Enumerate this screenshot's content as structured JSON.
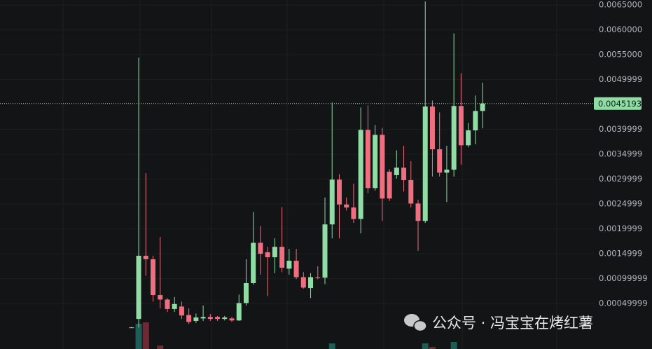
{
  "chart_data": {
    "type": "candlestick",
    "ylim": [
      -0.000414,
      0.0066
    ],
    "yticks": [
      {
        "value": 0.0065,
        "label": "0.0065000"
      },
      {
        "value": 0.006,
        "label": "0.0060000"
      },
      {
        "value": 0.0055,
        "label": "0.0055000"
      },
      0.0049999,
      0.0039999,
      0.0034999,
      0.0029999,
      0.0024999,
      0.0019999,
      0.0014999,
      0.00099999,
      0.00049999
    ],
    "grid": true,
    "up_color": "#8fdca5",
    "down_color": "#ef6f80",
    "open": [
      2e-05,
      0.00019,
      0.00146,
      0.00139,
      0.00067,
      0.00058,
      0.00039,
      0.00044,
      0.00027,
      0.00015,
      0.0002,
      0.00023,
      0.00023,
      0.00019,
      0.0002,
      0.00016,
      0.00051,
      0.00091,
      0.00172,
      0.00153,
      0.00143,
      0.00164,
      0.0012,
      0.00136,
      0.00103,
      0.00081,
      0.00103,
      0.00102,
      0.00209,
      0.00299,
      0.00249,
      0.00243,
      0.0022,
      0.00399,
      0.00282,
      0.00389,
      0.00315,
      0.00308,
      0.00323,
      0.00298,
      0.00251,
      0.00216,
      0.00446,
      0.0036,
      0.00313,
      0.00319,
      0.00447,
      0.00368,
      0.00398,
      0.00437
    ],
    "high": [
      3e-05,
      0.00544,
      0.00312,
      0.00146,
      0.00184,
      0.00061,
      0.00063,
      0.00054,
      0.0004,
      0.0003,
      0.00046,
      0.00029,
      0.00025,
      0.00025,
      0.00023,
      0.00068,
      0.00139,
      0.00234,
      0.00206,
      0.00164,
      0.00181,
      0.00244,
      0.0016,
      0.0016,
      0.00113,
      0.00111,
      0.00125,
      0.00263,
      0.00454,
      0.0031,
      0.00263,
      0.00291,
      0.00444,
      0.00448,
      0.00409,
      0.00403,
      0.0032,
      0.00358,
      0.00367,
      0.00336,
      0.00258,
      0.00657,
      0.00458,
      0.00434,
      0.00367,
      0.00593,
      0.00513,
      0.00413,
      0.00468,
      0.00494
    ],
    "low": [
      1e-05,
      2e-05,
      0.00106,
      0.00054,
      0.0004,
      0.00033,
      0.00033,
      0.00019,
      9e-05,
      0.00011,
      0.00015,
      0.00015,
      0.00015,
      0.00016,
      0.00013,
      0.00015,
      0.00046,
      0.00088,
      0.00108,
      0.00065,
      0.00111,
      0.00113,
      0.00108,
      0.00099,
      0.0008,
      0.00061,
      0.00099,
      0.00089,
      0.00181,
      0.00181,
      0.00237,
      0.00212,
      0.00191,
      0.00272,
      0.00277,
      0.00216,
      0.00256,
      0.00301,
      0.00275,
      0.00243,
      0.00156,
      0.00212,
      0.00305,
      0.00305,
      0.00254,
      0.00305,
      0.00329,
      0.00364,
      0.0037,
      0.00402
    ],
    "close": [
      2e-05,
      0.00146,
      0.00139,
      0.00067,
      0.00058,
      0.00039,
      0.00049,
      0.00026,
      0.00013,
      0.00022,
      0.00023,
      0.00019,
      0.00019,
      0.00022,
      0.00016,
      0.00051,
      0.00091,
      0.00172,
      0.0015,
      0.00143,
      0.00164,
      0.00122,
      0.00136,
      0.00103,
      0.00082,
      0.00103,
      0.00102,
      0.00209,
      0.00299,
      0.00249,
      0.00243,
      0.0022,
      0.00399,
      0.00282,
      0.00389,
      0.00261,
      0.00261,
      0.00323,
      0.00298,
      0.00251,
      0.00216,
      0.00446,
      0.0036,
      0.00313,
      0.00319,
      0.00447,
      0.00368,
      0.00398,
      0.00437,
      0.0045193
    ],
    "volume": [
      0,
      36,
      38,
      0,
      5,
      0,
      0,
      0,
      0,
      0,
      0,
      0,
      0,
      0,
      0,
      0,
      0,
      0,
      0,
      0,
      0,
      0,
      0,
      0,
      0,
      0,
      0,
      0,
      8,
      0,
      0,
      0,
      0,
      0,
      0,
      0,
      0,
      0,
      0,
      0,
      0,
      8,
      3,
      0,
      0,
      10,
      0,
      0,
      0,
      0
    ],
    "volume_lim": [
      0,
      100
    ],
    "volume_up_color": "#1f5c55",
    "volume_down_color": "#6b2a35",
    "last_price": 0.0045193,
    "last_price_color": "#8fdca5"
  },
  "watermark": "公众号 · 冯宝宝在烤红薯"
}
